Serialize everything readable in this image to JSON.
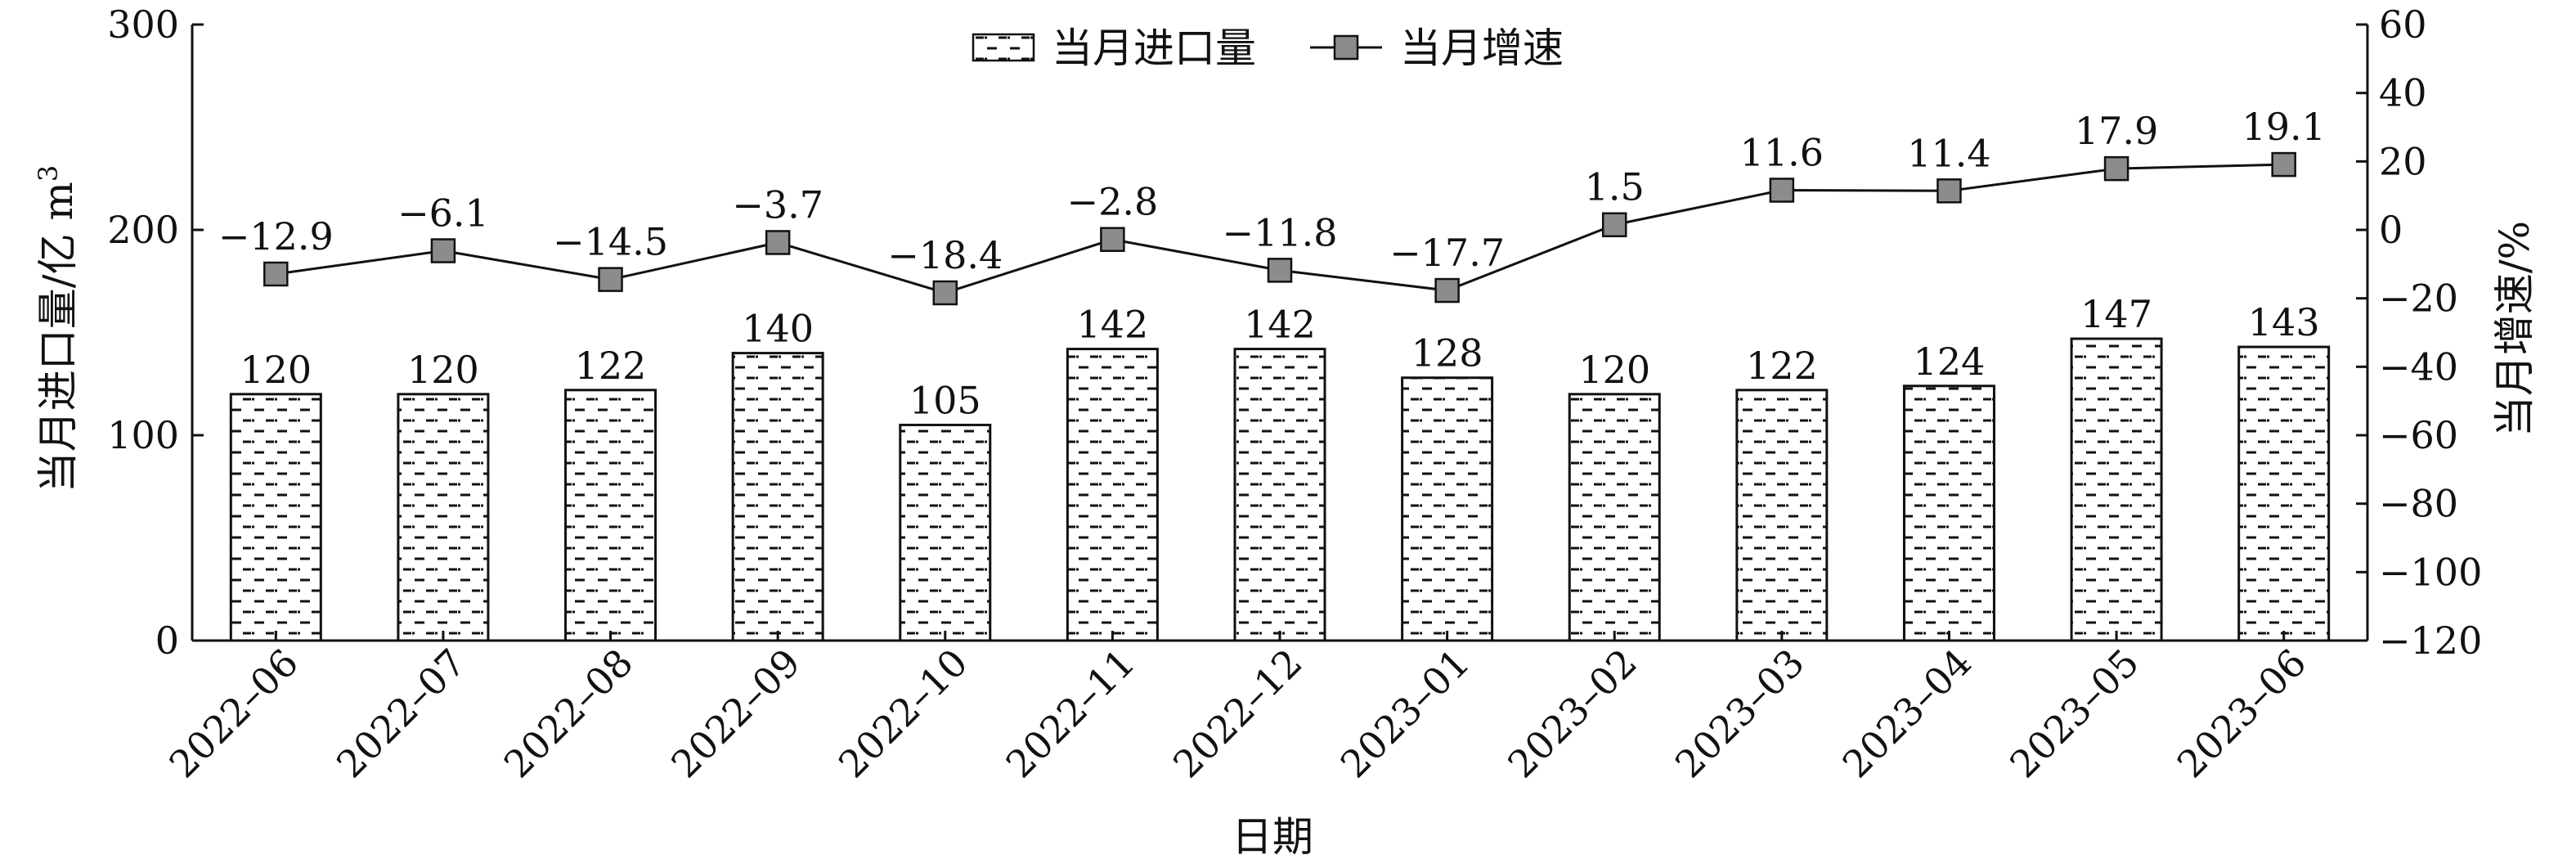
{
  "chart_data": {
    "type": "bar+line",
    "categories": [
      "2022–06",
      "2022–07",
      "2022–08",
      "2022–09",
      "2022–10",
      "2022–11",
      "2022–12",
      "2023–01",
      "2023–02",
      "2023–03",
      "2023–04",
      "2023–05",
      "2023–06"
    ],
    "series": [
      {
        "name": "当月进口量",
        "type": "bar",
        "axis": "left",
        "values": [
          120,
          120,
          122,
          140,
          105,
          142,
          142,
          128,
          120,
          122,
          124,
          147,
          143
        ],
        "labels": [
          "120",
          "120",
          "122",
          "140",
          "105",
          "142",
          "142",
          "128",
          "120",
          "122",
          "124",
          "147",
          "143"
        ]
      },
      {
        "name": "当月增速",
        "type": "line",
        "axis": "right",
        "marker": "square",
        "values": [
          -12.9,
          -6.1,
          -14.5,
          -3.7,
          -18.4,
          -2.8,
          -11.8,
          -17.7,
          1.5,
          11.6,
          11.4,
          17.9,
          19.1
        ],
        "labels": [
          "−12.9",
          "−6.1",
          "−14.5",
          "−3.7",
          "−18.4",
          "−2.8",
          "−11.8",
          "−17.7",
          "1.5",
          "11.6",
          "11.4",
          "17.9",
          "19.1"
        ]
      }
    ],
    "xlabel": "日期",
    "ylabel": "当月进口量/亿 m",
    "ylabel_superscript": "3",
    "y2label": "当月增速/%",
    "ylim": [
      0,
      300
    ],
    "y2lim": [
      -120,
      60
    ],
    "yticks": [
      "0",
      "100",
      "200",
      "300"
    ],
    "y2ticks": [
      "−120",
      "−100",
      "−80",
      "−60",
      "−40",
      "−20",
      "0",
      "20",
      "40",
      "60"
    ],
    "legend": {
      "position": "top-center",
      "entries": [
        "当月进口量",
        "当月增速"
      ]
    },
    "grid": false,
    "colors": {
      "bar_fill": "#ffffff",
      "bar_pattern": "#111111",
      "line": "#111111",
      "marker": "#8c8c8c",
      "axis": "#111111"
    }
  }
}
